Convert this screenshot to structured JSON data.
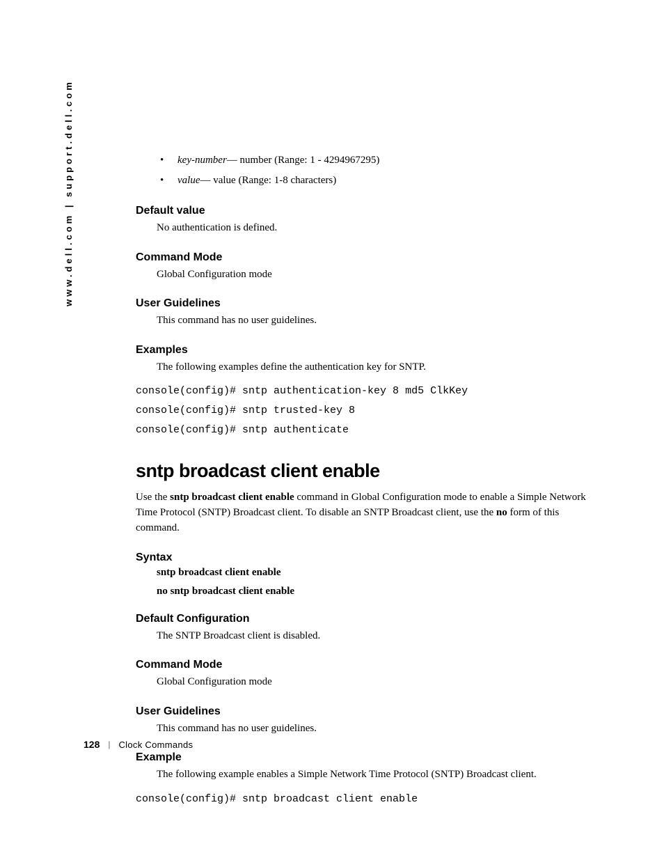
{
  "sidebar": {
    "url": "www.dell.com | support.dell.com"
  },
  "bullets": {
    "item1_term": "key-number",
    "item1_desc": "— number (Range: 1 - 4294967295)",
    "item2_term": "value",
    "item2_desc": "— value (Range: 1-8 characters)"
  },
  "section1": {
    "heading": "Default value",
    "body": "No authentication  is defined."
  },
  "section2": {
    "heading": "Command Mode",
    "body": "Global Configuration mode"
  },
  "section3": {
    "heading": "User Guidelines",
    "body": "This command has no user guidelines."
  },
  "section4": {
    "heading": "Examples",
    "body": "The following examples define the authentication key for SNTP.",
    "code1": "console(config)# sntp authentication-key 8 md5 ClkKey",
    "code2": "console(config)# sntp trusted-key 8",
    "code3": "console(config)# sntp authenticate"
  },
  "main": {
    "heading": "sntp broadcast client enable",
    "para_prefix": "Use the ",
    "para_bold": "sntp broadcast client enable",
    "para_mid": " command in Global Configuration mode to enable a Simple Network Time Protocol (SNTP) Broadcast client. To disable an SNTP Broadcast client, use the ",
    "para_bold2": "no",
    "para_suffix": " form of this command."
  },
  "section5": {
    "heading": "Syntax",
    "line1": "sntp broadcast client enable",
    "line2": "no sntp broadcast client enable"
  },
  "section6": {
    "heading": "Default Configuration",
    "body": "The SNTP Broadcast client is disabled."
  },
  "section7": {
    "heading": "Command Mode",
    "body": "Global Configuration mode"
  },
  "section8": {
    "heading": "User Guidelines",
    "body": "This command has no user guidelines."
  },
  "section9": {
    "heading": "Example",
    "body": "The following example enables a Simple Network Time Protocol (SNTP) Broadcast client.",
    "code": "console(config)# sntp broadcast client enable"
  },
  "footer": {
    "page": "128",
    "divider": "|",
    "section": "Clock Commands"
  }
}
